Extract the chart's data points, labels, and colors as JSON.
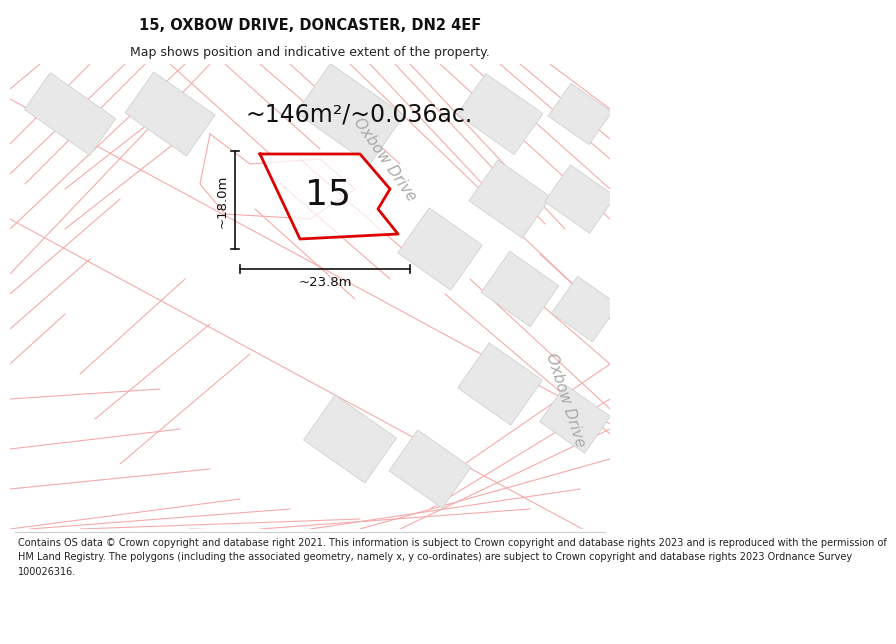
{
  "title_line1": "15, OXBOW DRIVE, DONCASTER, DN2 4EF",
  "title_line2": "Map shows position and indicative extent of the property.",
  "footer_lines": [
    "Contains OS data © Crown copyright and database right 2021. This information is subject to Crown copyright and database rights 2023 and is reproduced with the permission of",
    "HM Land Registry. The polygons (including the associated geometry, namely x, y co-ordinates) are subject to Crown copyright and database rights 2023 Ordnance Survey",
    "100026316."
  ],
  "area_label": "~146m²/~0.036ac.",
  "number_label": "15",
  "width_label": "~23.8m",
  "height_label": "~18.0m",
  "bg_color": "#ffffff",
  "map_bg": "#ffffff",
  "plot_line_color": "#f5aaaa",
  "building_fill": "#e8e8e8",
  "building_edge": "#cccccc",
  "property_outline": "#dd0000",
  "street_label_color": "#aaaaaa",
  "dim_color": "#111111",
  "title_fontsize": 10.5,
  "subtitle_fontsize": 9,
  "footer_fontsize": 7,
  "area_fontsize": 17,
  "number_fontsize": 26,
  "street_fontsize": 11,
  "dim_fontsize": 9.5
}
